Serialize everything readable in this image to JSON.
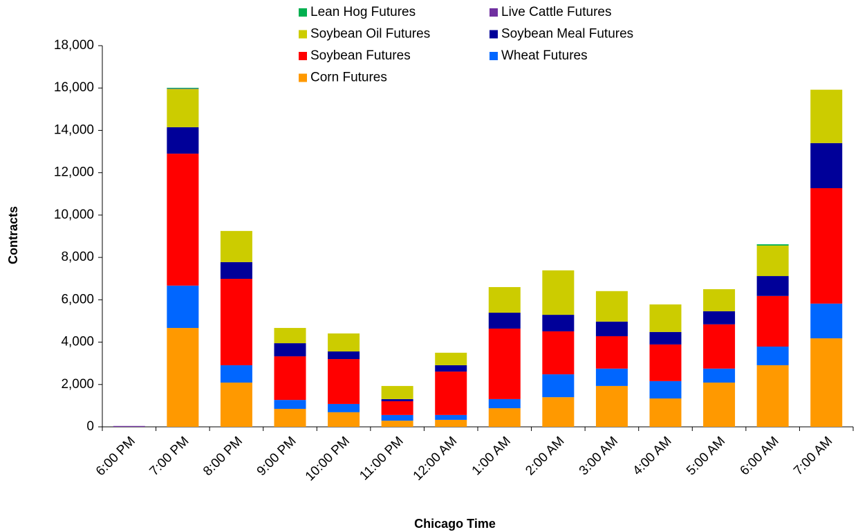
{
  "chart_data": {
    "type": "stacked-bar",
    "y_label": "Contracts",
    "x_label": "Chicago Time",
    "categories": [
      "6:00 PM",
      "7:00 PM",
      "8:00 PM",
      "9:00 PM",
      "10:00 PM",
      "11:00 PM",
      "12:00 AM",
      "1:00 AM",
      "2:00 AM",
      "3:00 AM",
      "4:00 AM",
      "5:00 AM",
      "6:00 AM",
      "7:00 AM"
    ],
    "series": [
      {
        "name": "Lean Hog Futures",
        "color": "#00b050",
        "values": [
          0,
          40,
          0,
          0,
          0,
          0,
          0,
          0,
          0,
          0,
          0,
          0,
          60,
          0
        ]
      },
      {
        "name": "Live Cattle Futures",
        "color": "#7030a0",
        "values": [
          40,
          20,
          0,
          0,
          0,
          0,
          0,
          0,
          0,
          0,
          0,
          0,
          0,
          0
        ]
      },
      {
        "name": "Soybean Oil Futures",
        "color": "#cccc00",
        "values": [
          0,
          1800,
          1470,
          720,
          850,
          620,
          590,
          1210,
          2100,
          1440,
          1300,
          1040,
          1440,
          2520
        ]
      },
      {
        "name": "Soybean Meal Futures",
        "color": "#000099",
        "values": [
          0,
          1250,
          790,
          620,
          360,
          100,
          300,
          750,
          780,
          690,
          590,
          620,
          940,
          2130
        ]
      },
      {
        "name": "Soybean Futures",
        "color": "#ff0000",
        "values": [
          0,
          6230,
          4080,
          2060,
          2120,
          650,
          2050,
          3330,
          2030,
          1530,
          1730,
          2090,
          2390,
          5450
        ]
      },
      {
        "name": "Wheat Futures",
        "color": "#0066ff",
        "values": [
          0,
          2000,
          820,
          420,
          390,
          270,
          230,
          430,
          1080,
          820,
          820,
          660,
          880,
          1640
        ]
      },
      {
        "name": "Corn Futures",
        "color": "#ff9900",
        "values": [
          0,
          4670,
          2090,
          850,
          690,
          290,
          330,
          880,
          1400,
          1930,
          1340,
          2090,
          2910,
          4180
        ]
      }
    ],
    "ylim": [
      0,
      18000
    ],
    "yticks": [
      0,
      {
        "value": 2000,
        "label": "2,000"
      },
      {
        "value": 4000,
        "label": "4,000"
      },
      {
        "value": 6000,
        "label": "6,000"
      },
      {
        "value": 8000,
        "label": "8,000"
      },
      {
        "value": 10000,
        "label": "10,000"
      },
      {
        "value": 12000,
        "label": "12,000"
      },
      {
        "value": 14000,
        "label": "14,000"
      },
      {
        "value": 16000,
        "label": "16,000"
      },
      {
        "value": 18000,
        "label": "18,000"
      }
    ],
    "legend": "top"
  }
}
